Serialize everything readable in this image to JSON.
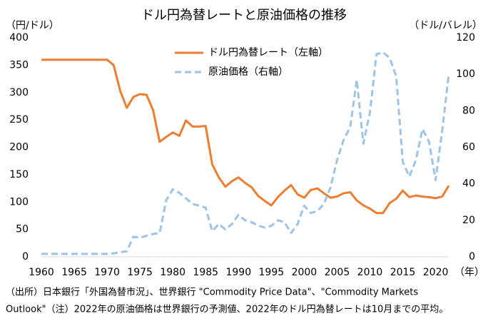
{
  "chart_data": {
    "type": "line",
    "title": "ドル円為替レートと原油価格の推移",
    "y_label": "（円/ドル）",
    "y2_label": "（ドル/バレル）",
    "x_label": "（年）",
    "notes": [
      "（出所）日本銀行「外国為替市況」、世界銀行 \"Commodity Price Data\"、\"Commodity Markets",
      "Outlook\"（注）2022年の原油価格は世界銀行の予測値、2022年のドル円為替レートは10月までの平均。"
    ],
    "x": [
      1960,
      1961,
      1962,
      1963,
      1964,
      1965,
      1966,
      1967,
      1968,
      1969,
      1970,
      1971,
      1972,
      1973,
      1974,
      1975,
      1976,
      1977,
      1978,
      1979,
      1980,
      1981,
      1982,
      1983,
      1984,
      1985,
      1986,
      1987,
      1988,
      1989,
      1990,
      1991,
      1992,
      1993,
      1994,
      1995,
      1996,
      1997,
      1998,
      1999,
      2000,
      2001,
      2002,
      2003,
      2004,
      2005,
      2006,
      2007,
      2008,
      2009,
      2010,
      2011,
      2012,
      2013,
      2014,
      2015,
      2016,
      2017,
      2018,
      2019,
      2020,
      2021,
      2022
    ],
    "xlim": [
      1960,
      2022
    ],
    "xticks": [
      1960,
      1965,
      1970,
      1975,
      1980,
      1985,
      1990,
      1995,
      2000,
      2005,
      2010,
      2015,
      2020
    ],
    "ylim": [
      0,
      400
    ],
    "yticks": [
      0,
      50,
      100,
      150,
      200,
      250,
      300,
      350,
      400
    ],
    "y2lim": [
      0,
      120
    ],
    "y2ticks": [
      0,
      20,
      40,
      60,
      80,
      100,
      120
    ],
    "grid": false,
    "series": [
      {
        "name": "ドル円為替レート（左軸）",
        "color": "#ed7d31",
        "dashed": false,
        "values": [
          360,
          360,
          360,
          360,
          360,
          360,
          360,
          360,
          360,
          360,
          360,
          350,
          303,
          272,
          292,
          297,
          296,
          268,
          210,
          219,
          227,
          221,
          249,
          238,
          238,
          239,
          169,
          145,
          128,
          138,
          145,
          135,
          127,
          111,
          102,
          94,
          109,
          121,
          131,
          114,
          108,
          122,
          125,
          116,
          108,
          110,
          116,
          118,
          103,
          94,
          88,
          80,
          80,
          98,
          106,
          121,
          109,
          112,
          110,
          109,
          107,
          110,
          130
        ]
      },
      {
        "name": "原油価格（右軸）",
        "color": "#9dc3e6",
        "dashed": true,
        "axis": "y2",
        "values": [
          1.6,
          1.6,
          1.6,
          1.6,
          1.6,
          1.6,
          1.6,
          1.6,
          1.6,
          1.6,
          1.6,
          1.9,
          2.5,
          3,
          11,
          10.5,
          11.5,
          12.5,
          13,
          31,
          37,
          35,
          32,
          29,
          28,
          27,
          14,
          18,
          15,
          18,
          23,
          20,
          19,
          17,
          16,
          17,
          20,
          19,
          13,
          18,
          28,
          24,
          25,
          29,
          38,
          53,
          64,
          71,
          97,
          62,
          79,
          111,
          112,
          109,
          99,
          52,
          44,
          53,
          70,
          63,
          42,
          69,
          100
        ]
      }
    ]
  }
}
